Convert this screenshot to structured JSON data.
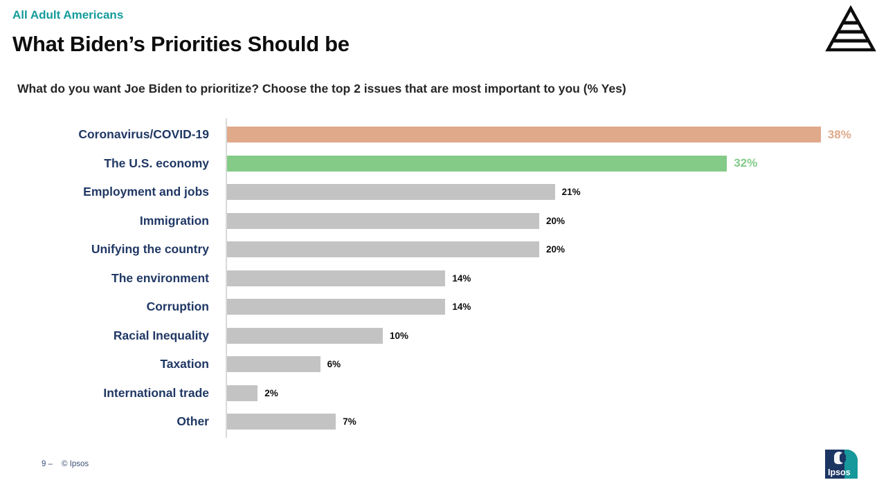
{
  "header": {
    "eyebrow": "All Adult Americans",
    "title": "What Biden’s Priorities Should be",
    "question": "What do you want Joe Biden to prioritize? Choose the top 2 issues that are most important to you (% Yes)"
  },
  "chart_data": {
    "type": "bar",
    "orientation": "horizontal",
    "title": "What Biden’s Priorities Should be",
    "subtitle": "What do you want Joe Biden to prioritize? Choose the top 2 issues that are most important to you (% Yes)",
    "categories": [
      "Coronavirus/COVID-19",
      "The U.S. economy",
      "Employment and jobs",
      "Immigration",
      "Unifying the country",
      "The environment",
      "Corruption",
      "Racial Inequality",
      "Taxation",
      "International trade",
      "Other"
    ],
    "values": [
      38,
      32,
      21,
      20,
      20,
      14,
      14,
      10,
      6,
      2,
      7
    ],
    "value_labels": [
      "38%",
      "32%",
      "21%",
      "20%",
      "20%",
      "14%",
      "14%",
      "10%",
      "6%",
      "2%",
      "7%"
    ],
    "xlim": [
      0,
      40
    ],
    "grid": false,
    "legend": "none",
    "bar_colors": [
      "#DFA98A",
      "#83CB87",
      "#C3C3C3",
      "#C3C3C3",
      "#C3C3C3",
      "#C3C3C3",
      "#C3C3C3",
      "#C3C3C3",
      "#C3C3C3",
      "#C3C3C3",
      "#C3C3C3"
    ],
    "value_label_colors": [
      "#DFA98A",
      "#83CB87",
      "#0d0d0d",
      "#0d0d0d",
      "#0d0d0d",
      "#0d0d0d",
      "#0d0d0d",
      "#0d0d0d",
      "#0d0d0d",
      "#0d0d0d",
      "#0d0d0d"
    ],
    "category_label_color": "#203864",
    "axis_line_color": "#D9D9D9"
  },
  "footer": {
    "page_number": "9 –",
    "copyright": "© Ipsos"
  },
  "branding": {
    "pyramid_logo": "striped-pyramid-icon",
    "ipsos_logo_text": "Ipsos",
    "ipsos_navy": "#1C3664",
    "ipsos_teal": "#17989B"
  }
}
